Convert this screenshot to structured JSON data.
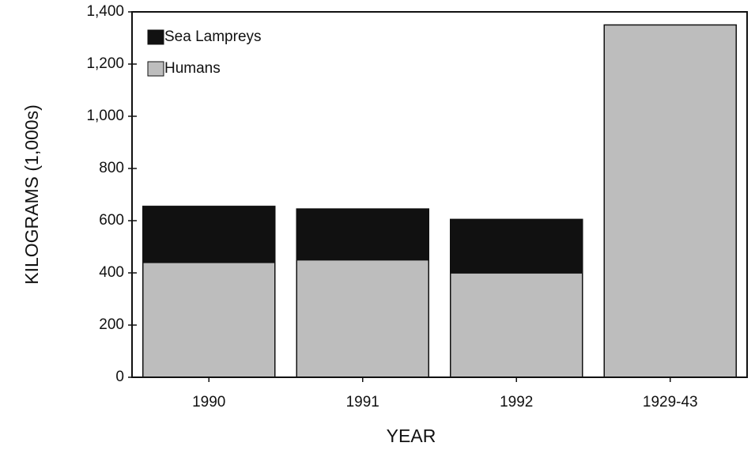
{
  "chart_data": {
    "type": "stacked_bar",
    "y_label": "KILOGRAMS (1,000s)",
    "x_label": "YEAR",
    "categories": [
      "1990",
      "1991",
      "1992",
      "1929-43"
    ],
    "series": [
      {
        "name": "Humans",
        "color": "#bdbdbd",
        "values": [
          440,
          450,
          400,
          1350
        ]
      },
      {
        "name": "Sea Lampreys",
        "color": "#111111",
        "values": [
          215,
          195,
          205,
          0
        ]
      }
    ],
    "ylim": [
      0,
      1400
    ],
    "yticks": [
      0,
      200,
      400,
      600,
      800,
      {
        "value": 1000,
        "label": "1,000"
      },
      {
        "value": 1200,
        "label": "1,200"
      },
      {
        "value": 1400,
        "label": "1,400"
      }
    ],
    "legend": "upper left"
  }
}
